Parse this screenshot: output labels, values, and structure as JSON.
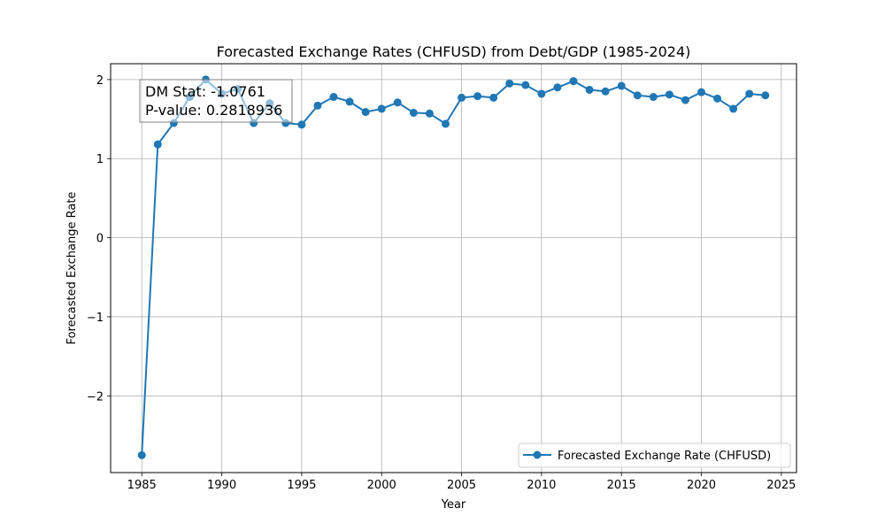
{
  "chart_data": {
    "type": "line",
    "title": "Forecasted Exchange Rates (CHFUSD) from Debt/GDP (1985-2024)",
    "xlabel": "Year",
    "ylabel": "Forecasted Exchange Rate",
    "xlim": [
      1983.05,
      2025.95
    ],
    "ylim": [
      -2.97,
      2.2
    ],
    "xticks": [
      1985,
      1990,
      1995,
      2000,
      2005,
      2010,
      2015,
      2020,
      2025
    ],
    "yticks": [
      -2,
      -1,
      0,
      1,
      2
    ],
    "ytick_labels": [
      "−2",
      "−1",
      "0",
      "1",
      "2"
    ],
    "grid": true,
    "legend_position": "lower-right",
    "series": [
      {
        "name": "Forecasted Exchange Rate (CHFUSD)",
        "color": "#1f77b4",
        "marker": "circle",
        "x": [
          1985,
          1986,
          1987,
          1988,
          1989,
          1990,
          1991,
          1992,
          1993,
          1994,
          1995,
          1996,
          1997,
          1998,
          1999,
          2000,
          2001,
          2002,
          2003,
          2004,
          2005,
          2006,
          2007,
          2008,
          2009,
          2010,
          2011,
          2012,
          2013,
          2014,
          2015,
          2016,
          2017,
          2018,
          2019,
          2020,
          2021,
          2022,
          2023,
          2024
        ],
        "y": [
          -2.75,
          1.18,
          1.45,
          1.78,
          2.0,
          1.82,
          1.88,
          1.45,
          1.7,
          1.45,
          1.43,
          1.67,
          1.78,
          1.72,
          1.59,
          1.63,
          1.71,
          1.58,
          1.57,
          1.44,
          1.77,
          1.79,
          1.77,
          1.95,
          1.93,
          1.82,
          1.9,
          1.98,
          1.87,
          1.85,
          1.92,
          1.8,
          1.78,
          1.81,
          1.74,
          1.84,
          1.76,
          1.63,
          1.82,
          1.8
        ]
      }
    ],
    "annotation": {
      "line1": "DM Stat: -1.0761",
      "line2": "P-value: 0.2818936"
    }
  }
}
